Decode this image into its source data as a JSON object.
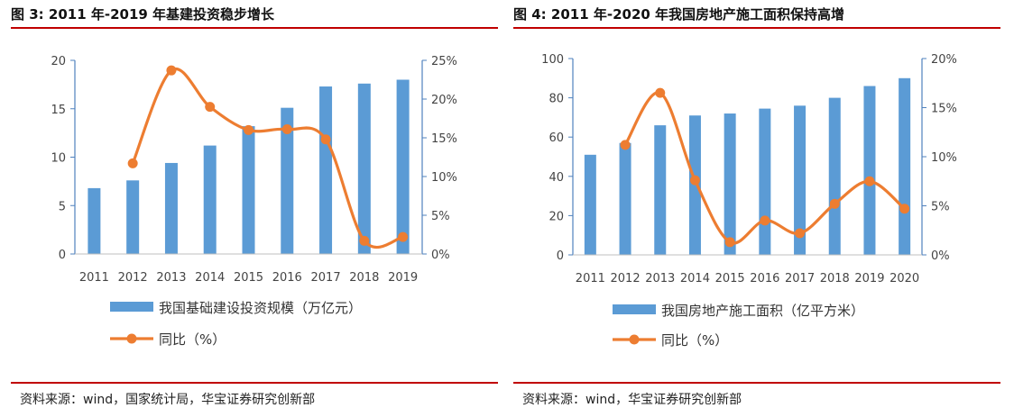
{
  "colors": {
    "bar": "#5B9BD5",
    "line": "#ED7D31",
    "rule": "#C00000",
    "axis": "#4F81BD"
  },
  "charts": [
    {
      "title": "图 3: 2011 年-2019 年基建投资稳步增长",
      "source": "资料来源：wind，国家统计局，华宝证券研究创新部",
      "chart_data": {
        "type": "bar",
        "categories": [
          "2011",
          "2012",
          "2013",
          "2014",
          "2015",
          "2016",
          "2017",
          "2018",
          "2019"
        ],
        "series": [
          {
            "name": "我国基础建设投资规模（万亿元）",
            "type": "bar",
            "axis": "left",
            "values": [
              6.8,
              7.6,
              9.4,
              11.2,
              13.2,
              15.1,
              17.3,
              17.6,
              18.0
            ]
          },
          {
            "name": "同比（%）",
            "type": "line",
            "axis": "right",
            "smooth": true,
            "values": [
              null,
              11.7,
              23.7,
              19.0,
              16.0,
              16.1,
              14.8,
              1.7,
              2.2
            ]
          }
        ],
        "ylim_left": [
          0,
          20
        ],
        "yticks_left": [
          "0",
          "5",
          "10",
          "15",
          "20"
        ],
        "ylim_right": [
          0,
          25
        ],
        "yticks_right": [
          "0%",
          "5%",
          "10%",
          "15%",
          "20%",
          "25%"
        ],
        "legend_position": "bottom"
      }
    },
    {
      "title": "图 4: 2011 年-2020 年我国房地产施工面积保持高增",
      "source": "资料来源：wind，华宝证券研究创新部",
      "chart_data": {
        "type": "bar",
        "categories": [
          "2011",
          "2012",
          "2013",
          "2014",
          "2015",
          "2016",
          "2017",
          "2018",
          "2019",
          "2020"
        ],
        "series": [
          {
            "name": "我国房地产施工面积（亿平方米）",
            "type": "bar",
            "axis": "left",
            "values": [
              51,
              57,
              66,
              71,
              72,
              74.5,
              76,
              80,
              86,
              90
            ]
          },
          {
            "name": "同比（%）",
            "type": "line",
            "axis": "right",
            "smooth": true,
            "values": [
              null,
              11.2,
              16.5,
              7.6,
              1.3,
              3.5,
              2.2,
              5.2,
              7.5,
              4.7
            ]
          }
        ],
        "ylim_left": [
          0,
          100
        ],
        "yticks_left": [
          "0",
          "20",
          "40",
          "60",
          "80",
          "100"
        ],
        "ylim_right": [
          0,
          20
        ],
        "yticks_right": [
          "0%",
          "5%",
          "10%",
          "15%",
          "20%"
        ],
        "legend_position": "bottom"
      }
    }
  ]
}
